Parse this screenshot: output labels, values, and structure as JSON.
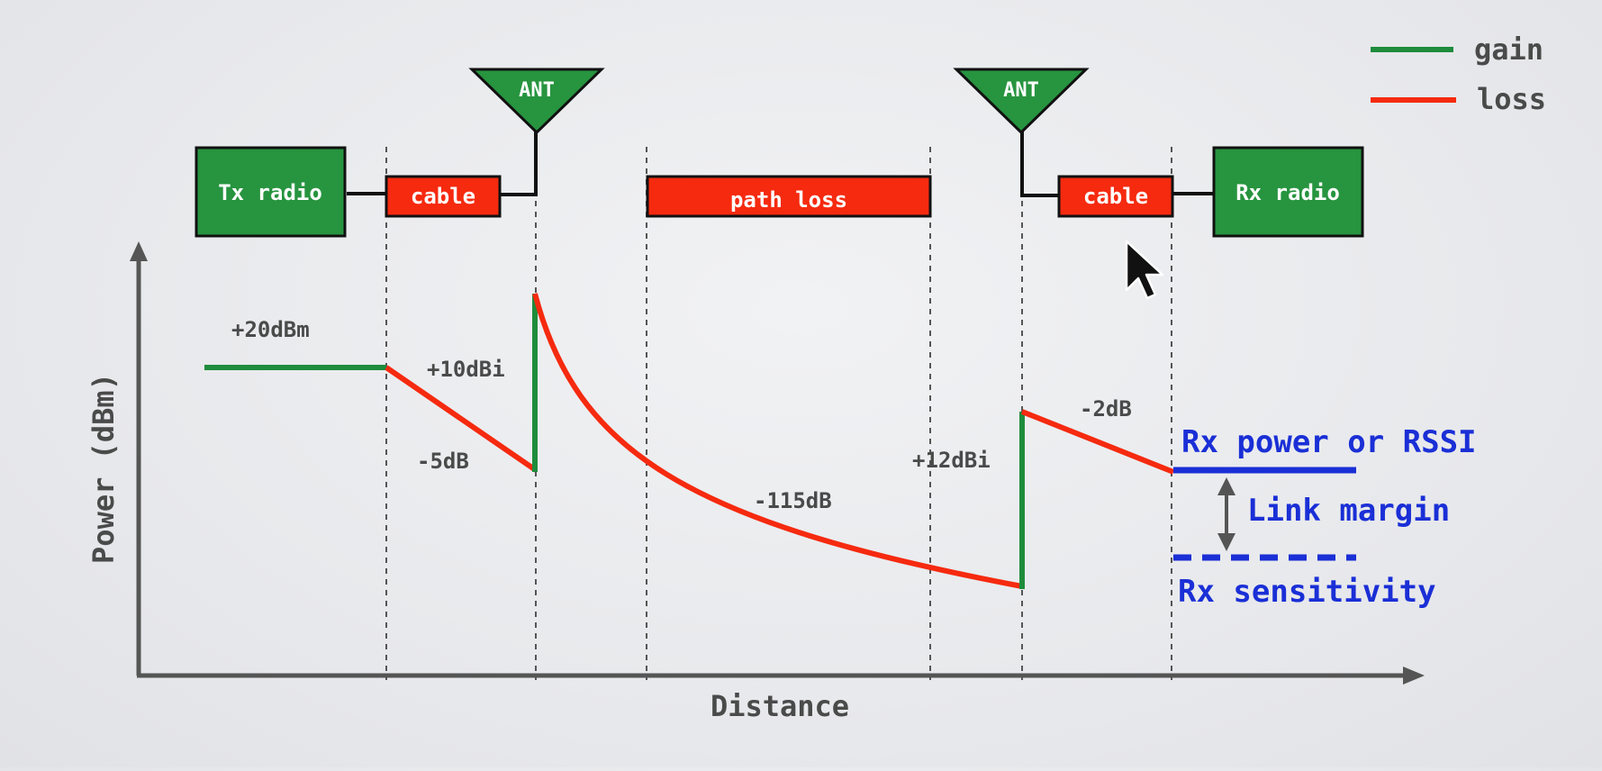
{
  "colors": {
    "gain": "#1e8c3c",
    "loss": "#f52a0f",
    "box_fill": "#27943f",
    "blue": "#1a2fd6",
    "text_gray": "#4a4a4a",
    "axis": "#555555"
  },
  "legend": {
    "gain_label": "gain",
    "loss_label": "loss"
  },
  "components": {
    "tx_radio": "Tx radio",
    "tx_cable": "cable",
    "tx_antenna": "ANT",
    "path_loss": "path loss",
    "rx_antenna": "ANT",
    "rx_cable": "cable",
    "rx_radio": "Rx radio"
  },
  "annotations": {
    "tx_power": "+20dBm",
    "tx_cable_loss": "-5dB",
    "tx_antenna_gain": "+10dBi",
    "path_loss_value": "-115dB",
    "rx_antenna_gain": "+12dBi",
    "rx_cable_loss": "-2dB"
  },
  "rx": {
    "power_label": "Rx power or RSSI",
    "margin_label": "Link margin",
    "sensitivity_label": "Rx sensitivity"
  },
  "axes": {
    "x_label": "Distance",
    "y_label": "Power (dBm)"
  }
}
